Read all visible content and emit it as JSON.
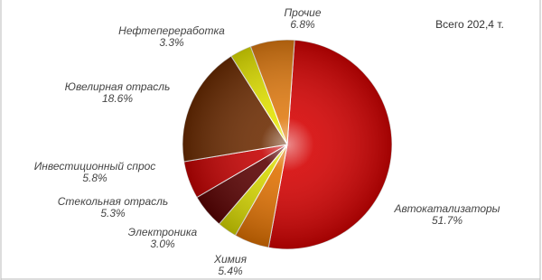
{
  "chart_data": {
    "type": "pie",
    "annotation": "Всего 202,4 т.",
    "categories": [
      "Автокатализаторы",
      "Химия",
      "Электроника",
      "Стекольная отрасль",
      "Инвестиционный спрос",
      "Ювелирная отрасль",
      "Нефтепереработка",
      "Прочие"
    ],
    "values": [
      51.7,
      5.4,
      3.0,
      5.3,
      5.8,
      18.6,
      3.3,
      6.8
    ],
    "value_labels": [
      "51.7%",
      "5.4%",
      "3.0%",
      "5.3%",
      "5.8%",
      "18.6%",
      "3.3%",
      "6.8%"
    ],
    "colors": [
      "#d40000",
      "#e07000",
      "#d8d800",
      "#5a0000",
      "#c40000",
      "#6b2a00",
      "#e4e400",
      "#e07a10"
    ]
  }
}
